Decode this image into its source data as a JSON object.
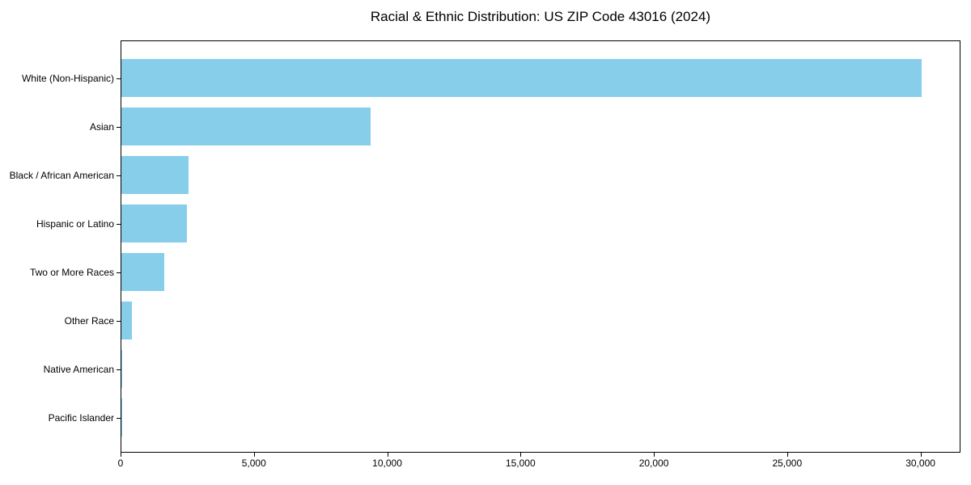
{
  "page": {
    "background_color": "#ffffff",
    "text_color": "#000000"
  },
  "chart_data": {
    "type": "bar",
    "orientation": "horizontal",
    "title": "Racial & Ethnic Distribution: US ZIP Code 43016 (2024)",
    "categories": [
      "White (Non-Hispanic)",
      "Asian",
      "Black / African American",
      "Hispanic or Latino",
      "Two or More Races",
      "Other Race",
      "Native American",
      "Pacific Islander"
    ],
    "values": [
      30000,
      9350,
      2520,
      2460,
      1610,
      395,
      25,
      10
    ],
    "xlabel": "",
    "ylabel": "",
    "xlim": [
      0,
      31500
    ],
    "xticks": [
      {
        "value": 0,
        "label": "0"
      },
      {
        "value": 5000,
        "label": "5,000"
      },
      {
        "value": 10000,
        "label": "10,000"
      },
      {
        "value": 15000,
        "label": "15,000"
      },
      {
        "value": 20000,
        "label": "20,000"
      },
      {
        "value": 25000,
        "label": "25,000"
      },
      {
        "value": 30000,
        "label": "30,000"
      }
    ],
    "bar_color": "#87CEEB",
    "axis_color": "#000000",
    "grid": false,
    "legend": null
  }
}
